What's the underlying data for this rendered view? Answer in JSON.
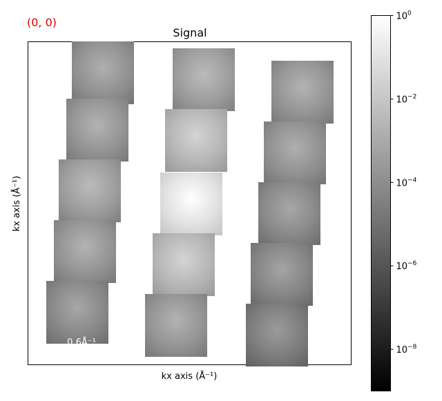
{
  "chart_data": {
    "type": "heatmap",
    "title": "Signal",
    "corner_label": "(0, 0)",
    "corner_label_color": "#dd0000",
    "xlabel": "kx axis (Å⁻¹)",
    "ylabel": "kx axis (Å⁻¹)",
    "scale_bar_label": "0.6Å⁻¹",
    "colormap": "gray",
    "colorbar": {
      "scale": "log",
      "range": [
        1e-09,
        1
      ],
      "ticks": [
        {
          "value": 1,
          "label": "10",
          "exp": "0"
        },
        {
          "value": 0.01,
          "label": "10",
          "exp": "−2"
        },
        {
          "value": 0.0001,
          "label": "10",
          "exp": "−4"
        },
        {
          "value": 1e-06,
          "label": "10",
          "exp": "−6"
        },
        {
          "value": 1e-08,
          "label": "10",
          "exp": "−8"
        }
      ]
    },
    "disks": [
      {
        "column": 1,
        "row": 1,
        "peak_intensity": 0.0015
      },
      {
        "column": 1,
        "row": 2,
        "peak_intensity": 0.002
      },
      {
        "column": 1,
        "row": 3,
        "peak_intensity": 0.004
      },
      {
        "column": 1,
        "row": 4,
        "peak_intensity": 0.002
      },
      {
        "column": 1,
        "row": 5,
        "peak_intensity": 0.0008
      },
      {
        "column": 2,
        "row": 1,
        "peak_intensity": 0.004
      },
      {
        "column": 2,
        "row": 2,
        "peak_intensity": 0.03
      },
      {
        "column": 2,
        "row": 3,
        "peak_intensity": 1.0
      },
      {
        "column": 2,
        "row": 4,
        "peak_intensity": 0.03
      },
      {
        "column": 2,
        "row": 5,
        "peak_intensity": 0.002
      },
      {
        "column": 3,
        "row": 1,
        "peak_intensity": 0.002
      },
      {
        "column": 3,
        "row": 2,
        "peak_intensity": 0.0015
      },
      {
        "column": 3,
        "row": 3,
        "peak_intensity": 0.0008
      },
      {
        "column": 3,
        "row": 4,
        "peak_intensity": 0.0006
      },
      {
        "column": 3,
        "row": 5,
        "peak_intensity": 0.0003
      }
    ]
  }
}
